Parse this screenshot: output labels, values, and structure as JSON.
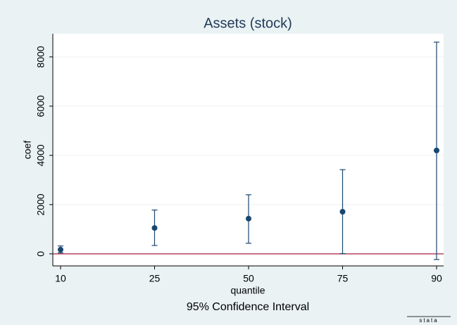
{
  "chart_data": {
    "type": "errorbar",
    "title": "Assets (stock)",
    "x_label": "quantile",
    "y_label": "coef",
    "note": "95% Confidence Interval",
    "logo": "stata",
    "categories": [
      "10",
      "25",
      "50",
      "75",
      "90"
    ],
    "series": [
      {
        "name": "coef",
        "color": "#1a476f",
        "values": [
          170,
          1050,
          1430,
          1710,
          4200
        ],
        "ci_low": [
          40,
          340,
          430,
          10,
          -230
        ],
        "ci_high": [
          320,
          1780,
          2400,
          3420,
          8600
        ]
      }
    ],
    "reference_line": {
      "value": 0,
      "color": "#a8203f"
    },
    "ylim": [
      -490,
      8940
    ],
    "yticks": [
      0,
      2000,
      4000,
      6000,
      8000
    ],
    "grid": true
  }
}
